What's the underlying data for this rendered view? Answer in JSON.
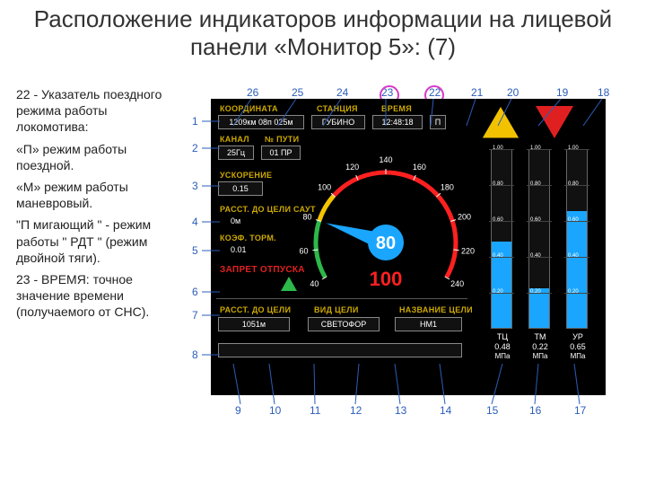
{
  "title": "Расположение индикаторов информации на лицевой панели «Монитор 5»:   (7)",
  "legend": {
    "l1": "22 - Указатель поездного режима работы локомотива:",
    "l2": "«П» режим работы поездной.",
    "l3": "«М» режим работы маневровый.",
    "l4": "\"П мигающий \" - режим работы \" РДТ \" (режим двойной тяги).",
    "l5": "23 - ВРЕМЯ: точное значение времени (получаемого от СНС)."
  },
  "panel": {
    "labels": {
      "coord": "КООРДИНАТА",
      "station": "СТАНЦИЯ",
      "time": "ВРЕМЯ",
      "channel": "КАНАЛ",
      "track": "№ ПУТИ",
      "accel": "УСКОРЕНИЕ",
      "dist_saut": "РАССТ. ДО ЦЕЛИ САУТ",
      "brake_coef": "КОЭФ. ТОРМ.",
      "no_release": "ЗАПРЕТ ОТПУСКА",
      "dist_target": "РАССТ. ДО ЦЕЛИ",
      "target_type": "ВИД ЦЕЛИ",
      "target_name": "НАЗВАНИЕ ЦЕЛИ"
    },
    "values": {
      "coord": "1209км 08п 025м",
      "station": "ГУБИНО",
      "time": "12:48:18",
      "mode": "П",
      "channel": "25Гц",
      "track": "01 ПР",
      "accel": "0.15",
      "dist_saut": "0м",
      "brake_coef": "0.01",
      "dist_target": "1051м",
      "target_type": "СВЕТОФОР",
      "target_name": "НМ1"
    },
    "speedo": {
      "current": "80",
      "limit": "100",
      "ticks": [
        "40",
        "60",
        "80",
        "100",
        "120",
        "140",
        "160",
        "180",
        "200",
        "220",
        "240"
      ],
      "tick_color": "#fff",
      "needle_color": "#1aa6ff",
      "hub_color": "#1aa6ff",
      "limit_color": "#ff2020",
      "arc_green": "#2db84a",
      "arc_yellow": "#f5c400",
      "arc_red": "#ff2020"
    },
    "triangles": {
      "yellow": "#f2c200",
      "red": "#e02020"
    },
    "bars": {
      "ticks": [
        "1.00",
        "0.80",
        "0.60",
        "0.40",
        "0.20"
      ],
      "items": [
        {
          "name": "ТЦ",
          "value": "0.48",
          "unit": "МПа",
          "fill": 0.48,
          "color": "#1aa6ff"
        },
        {
          "name": "ТМ",
          "value": "0.22",
          "unit": "МПа",
          "fill": 0.22,
          "color": "#1aa6ff"
        },
        {
          "name": "УР",
          "value": "0.65",
          "unit": "МПа",
          "fill": 0.65,
          "color": "#1aa6ff"
        }
      ]
    },
    "green_triangle": "#2db84a"
  },
  "callouts": {
    "left": [
      "1",
      "2",
      "3",
      "4",
      "5",
      "6",
      "7",
      "8"
    ],
    "top": [
      "26",
      "25",
      "24",
      "23",
      "22",
      "21",
      "20",
      "19",
      "18"
    ],
    "bottom": [
      "9",
      "10",
      "11",
      "12",
      "13",
      "14",
      "15",
      "16",
      "17"
    ]
  },
  "colors": {
    "callout": "#2b5db8",
    "highlight_circle": "#d63ac8",
    "panel_bg": "#000000",
    "label": "#cca800"
  }
}
